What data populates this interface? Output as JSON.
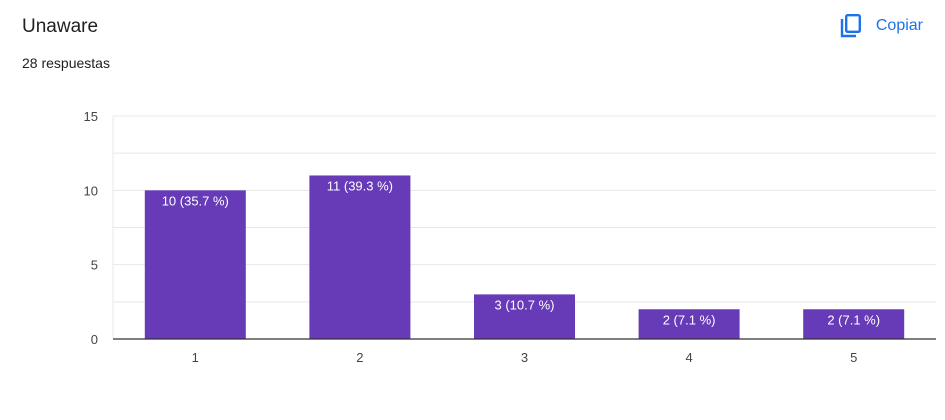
{
  "header": {
    "title": "Unaware",
    "subtitle": "28 respuestas",
    "copy_label": "Copiar",
    "copy_icon": "copy-icon"
  },
  "colors": {
    "bar": "#673ab7",
    "accent": "#1a73e8",
    "grid": "#e8e8e8",
    "axis": "#333333"
  },
  "chart_data": {
    "type": "bar",
    "title": "",
    "xlabel": "",
    "ylabel": "",
    "categories": [
      "1",
      "2",
      "3",
      "4",
      "5"
    ],
    "values": [
      10,
      11,
      3,
      2,
      2
    ],
    "labels": [
      "10 (35.7 %)",
      "11 (39.3 %)",
      "3 (10.7 %)",
      "2 (7.1 %)",
      "2 (7.1 %)"
    ],
    "ylim": [
      0,
      15
    ],
    "yticks": [
      0,
      5,
      10,
      15
    ],
    "grid": true,
    "legend": "none"
  }
}
